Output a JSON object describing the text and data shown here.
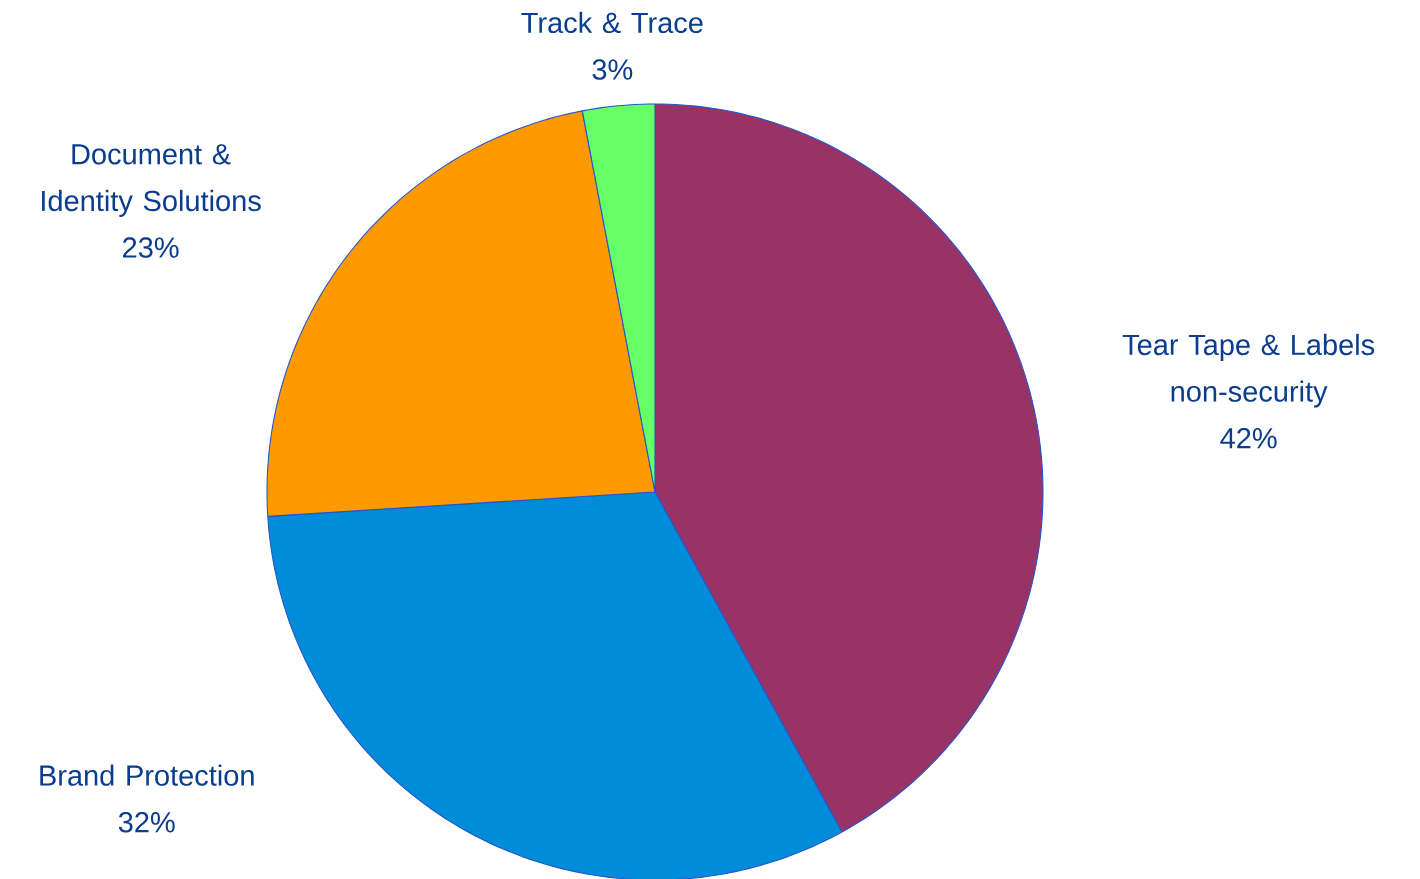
{
  "chart_data": {
    "type": "pie",
    "categories": [
      "Tear Tape & Labels non-security",
      "Brand Protection",
      "Document & Identity Solutions",
      "Track & Trace"
    ],
    "values": [
      42,
      32,
      23,
      3
    ],
    "value_labels": [
      "42%",
      "32%",
      "23%",
      "3%"
    ],
    "colors": [
      "#993366",
      "#008CD8",
      "#FF9900",
      "#66FF66"
    ]
  }
}
